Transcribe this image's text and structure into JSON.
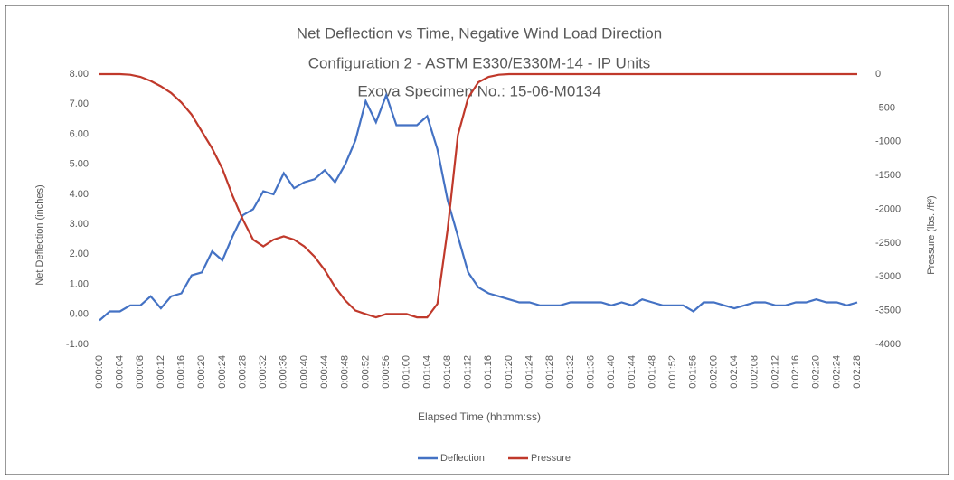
{
  "chart_data": {
    "type": "line",
    "title": "Net Deflection vs Time, Negative Wind Load Direction",
    "subtitle": "Configuration 2 - ASTM E330/E330M-14 - IP Units",
    "subtitle2": "Exova Specimen No.: 15-06-M0134",
    "x_label": "Elapsed Time (hh:mm:ss)",
    "y_label": "Net Deflection (inches)",
    "y2_label": "Pressure (lbs. /ft²)",
    "categories": [
      "0:00:00",
      null,
      "0:00:04",
      null,
      "0:00:08",
      null,
      "0:00:12",
      null,
      "0:00:16",
      null,
      "0:00:20",
      null,
      "0:00:24",
      null,
      "0:00:28",
      null,
      "0:00:32",
      null,
      "0:00:36",
      null,
      "0:00:40",
      null,
      "0:00:44",
      null,
      "0:00:48",
      null,
      "0:00:52",
      null,
      "0:00:56",
      null,
      "0:01:00",
      null,
      "0:01:04",
      null,
      "0:01:08",
      null,
      "0:01:12",
      null,
      "0:01:16",
      null,
      "0:01:20",
      null,
      "0:01:24",
      null,
      "0:01:28",
      null,
      "0:01:32",
      null,
      "0:01:36",
      null,
      "0:01:40",
      null,
      "0:01:44",
      null,
      "0:01:48",
      null,
      "0:01:52",
      null,
      "0:01:56",
      null,
      "0:02:00",
      null,
      "0:02:04",
      null,
      "0:02:08",
      null,
      "0:02:12",
      null,
      "0:02:16",
      null,
      "0:02:20",
      null,
      "0:02:24",
      null,
      "0:02:28"
    ],
    "series": [
      {
        "name": "Deflection",
        "color": "#4472c4",
        "values": [
          -0.2,
          0.1,
          0.1,
          0.3,
          0.3,
          0.6,
          0.2,
          0.6,
          0.7,
          1.3,
          1.4,
          2.1,
          1.8,
          2.6,
          3.3,
          3.5,
          4.1,
          4.0,
          4.7,
          4.2,
          4.4,
          4.5,
          4.8,
          4.4,
          5.0,
          5.8,
          7.1,
          6.4,
          7.3,
          6.3,
          6.3,
          6.3,
          6.6,
          5.5,
          3.8,
          2.6,
          1.4,
          0.9,
          0.7,
          0.6,
          0.5,
          0.4,
          0.4,
          0.3,
          0.3,
          0.3,
          0.4,
          0.4,
          0.4,
          0.4,
          0.3,
          0.4,
          0.3,
          0.5,
          0.4,
          0.3,
          0.3,
          0.3,
          0.1,
          0.4,
          0.4,
          0.3,
          0.2,
          0.3,
          0.4,
          0.4,
          0.3,
          0.3,
          0.4,
          0.4,
          0.5,
          0.4,
          0.4,
          0.3,
          0.4
        ]
      },
      {
        "name": "Pressure",
        "color": "#c0392b",
        "axis": "y2",
        "values": [
          0,
          0,
          0,
          -10,
          -40,
          -100,
          -180,
          -280,
          -420,
          -600,
          -850,
          -1100,
          -1400,
          -1800,
          -2150,
          -2450,
          -2550,
          -2450,
          -2400,
          -2450,
          -2550,
          -2700,
          -2900,
          -3150,
          -3350,
          -3500,
          -3550,
          -3600,
          -3550,
          -3550,
          -3550,
          -3600,
          -3600,
          -3400,
          -2300,
          -900,
          -350,
          -120,
          -40,
          -10,
          0,
          0,
          0,
          0,
          0,
          0,
          0,
          0,
          0,
          0,
          0,
          0,
          0,
          0,
          0,
          0,
          0,
          0,
          0,
          0,
          0,
          0,
          0,
          0,
          0,
          0,
          0,
          0,
          0,
          0,
          0,
          0,
          0,
          0,
          0
        ]
      }
    ],
    "ylim": [
      -1,
      8
    ],
    "yticks": [
      {
        "value": -1,
        "label": "-1.00"
      },
      {
        "value": 0,
        "label": "0.00"
      },
      {
        "value": 1,
        "label": "1.00"
      },
      {
        "value": 2,
        "label": "2.00"
      },
      {
        "value": 3,
        "label": "3.00"
      },
      {
        "value": 4,
        "label": "4.00"
      },
      {
        "value": 5,
        "label": "5.00"
      },
      {
        "value": 6,
        "label": "6.00"
      },
      {
        "value": 7,
        "label": "7.00"
      },
      {
        "value": 8,
        "label": "8.00"
      }
    ],
    "y2lim": [
      -4000,
      0
    ],
    "y2ticks": [
      -4000,
      -3500,
      -3000,
      -2500,
      -2000,
      -1500,
      -1000,
      -500,
      0
    ],
    "legend": "bottom"
  }
}
